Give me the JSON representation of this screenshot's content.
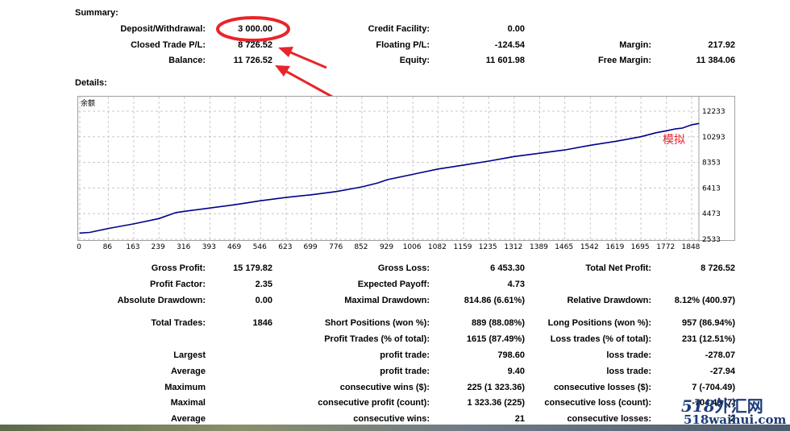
{
  "summary": {
    "heading": "Summary:",
    "deposit_label": "Deposit/Withdrawal:",
    "deposit_value": "3 000.00",
    "closed_pl_label": "Closed Trade P/L:",
    "closed_pl_value": "8 726.52",
    "balance_label": "Balance:",
    "balance_value": "11 726.52",
    "credit_label": "Credit Facility:",
    "credit_value": "0.00",
    "floating_label": "Floating P/L:",
    "floating_value": "-124.54",
    "equity_label": "Equity:",
    "equity_value": "11 601.98",
    "margin_label": "Margin:",
    "margin_value": "217.92",
    "free_margin_label": "Free Margin:",
    "free_margin_value": "11 384.06"
  },
  "details": {
    "heading": "Details:"
  },
  "chart_data": {
    "type": "line",
    "title": "余额",
    "annotation": "模拟",
    "line_color": "#00008b",
    "grid": true,
    "x_ticks": [
      0,
      86,
      163,
      239,
      316,
      393,
      469,
      546,
      623,
      699,
      776,
      852,
      929,
      1006,
      1082,
      1159,
      1235,
      1312,
      1389,
      1465,
      1542,
      1619,
      1695,
      1772,
      1848
    ],
    "y_ticks": [
      2533,
      4473,
      6413,
      8353,
      10293,
      12233
    ],
    "xlim": [
      0,
      1870
    ],
    "ylim": [
      2533,
      12233
    ],
    "series": [
      {
        "x": [
          0,
          30,
          86,
          163,
          239,
          290,
          316,
          393,
          469,
          546,
          623,
          699,
          776,
          852,
          900,
          929,
          1006,
          1082,
          1159,
          1235,
          1312,
          1389,
          1465,
          1542,
          1619,
          1695,
          1740,
          1772,
          1800,
          1820,
          1848,
          1870
        ],
        "y": [
          3000,
          3050,
          3350,
          3700,
          4100,
          4550,
          4650,
          4900,
          5150,
          5450,
          5700,
          5900,
          6150,
          6500,
          6800,
          7050,
          7450,
          7850,
          8150,
          8450,
          8800,
          9050,
          9300,
          9650,
          9950,
          10300,
          10600,
          10750,
          10900,
          10950,
          11200,
          11300
        ]
      }
    ]
  },
  "stats": {
    "gross_profit_label": "Gross Profit:",
    "gross_profit_value": "15 179.82",
    "gross_loss_label": "Gross Loss:",
    "gross_loss_value": "6 453.30",
    "total_net_profit_label": "Total Net Profit:",
    "total_net_profit_value": "8 726.52",
    "profit_factor_label": "Profit Factor:",
    "profit_factor_value": "2.35",
    "expected_payoff_label": "Expected Payoff:",
    "expected_payoff_value": "4.73",
    "absolute_drawdown_label": "Absolute Drawdown:",
    "absolute_drawdown_value": "0.00",
    "maximal_drawdown_label": "Maximal Drawdown:",
    "maximal_drawdown_value": "814.86 (6.61%)",
    "relative_drawdown_label": "Relative Drawdown:",
    "relative_drawdown_value": "8.12% (400.97)",
    "total_trades_label": "Total Trades:",
    "total_trades_value": "1846",
    "short_positions_label": "Short Positions (won %):",
    "short_positions_value": "889 (88.08%)",
    "long_positions_label": "Long Positions (won %):",
    "long_positions_value": "957 (86.94%)",
    "profit_trades_label": "Profit Trades (% of total):",
    "profit_trades_value": "1615 (87.49%)",
    "loss_trades_label": "Loss trades (% of total):",
    "loss_trades_value": "231 (12.51%)",
    "largest_label": "Largest",
    "largest_profit_label": "profit trade:",
    "largest_profit_value": "798.60",
    "largest_loss_label": "loss trade:",
    "largest_loss_value": "-278.07",
    "average_label": "Average",
    "average_profit_label": "profit trade:",
    "average_profit_value": "9.40",
    "average_loss_label": "loss trade:",
    "average_loss_value": "-27.94",
    "maximum_label": "Maximum",
    "max_cons_wins_label": "consecutive wins ($):",
    "max_cons_wins_value": "225 (1 323.36)",
    "max_cons_losses_label": "consecutive losses ($):",
    "max_cons_losses_value": "7 (-704.49)",
    "maximal_label": "Maximal",
    "maximal_cons_profit_label": "consecutive profit (count):",
    "maximal_cons_profit_value": "1 323.36 (225)",
    "maximal_cons_loss_label": "consecutive loss (count):",
    "maximal_cons_loss_value": "-704.49 (7)",
    "average2_label": "Average",
    "avg_cons_wins_label": "consecutive wins:",
    "avg_cons_wins_value": "21",
    "avg_cons_losses_label": "consecutive losses:",
    "avg_cons_losses_value": "2"
  },
  "annotations": {
    "circle_color": "#e8252a",
    "arrow_color": "#e8252a"
  },
  "watermark": {
    "logo_text": "518外汇网",
    "url_text": "518waihui.com"
  }
}
